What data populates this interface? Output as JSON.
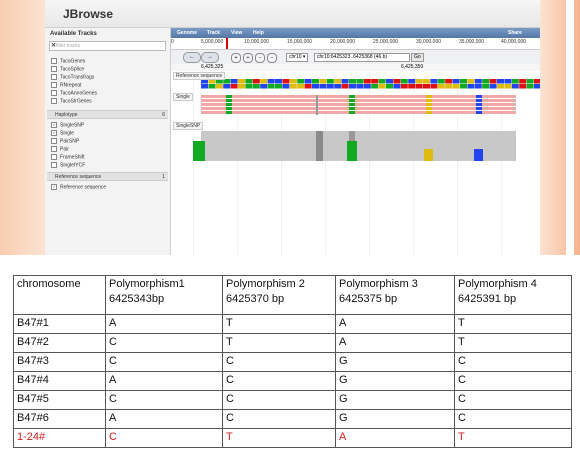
{
  "app": {
    "title": "JBrowse"
  },
  "sidebar": {
    "header": "Available Tracks",
    "filter_placeholder": "filter tracks",
    "tracks": [
      "TacoGenes",
      "TacoSplice",
      "TacoTransfrags",
      "RNrepeat",
      "TacoAnnoGenes",
      "TacoStrGenes"
    ],
    "groups": [
      {
        "label": "Haplotype",
        "count": "6",
        "items": [
          {
            "label": "SingleSNP",
            "checked": true
          },
          {
            "label": "Single",
            "checked": true
          },
          {
            "label": "PairSNP",
            "checked": false
          },
          {
            "label": "Pair",
            "checked": false
          },
          {
            "label": "FrameShift",
            "checked": false
          },
          {
            "label": "SingletYCF",
            "checked": false
          }
        ]
      },
      {
        "label": "Reference sequence",
        "count": "1",
        "items": [
          {
            "label": "Reference sequence",
            "checked": true
          }
        ]
      }
    ]
  },
  "menu": {
    "items": [
      "Genome",
      "Track",
      "View",
      "Help"
    ],
    "share": "Share"
  },
  "ruler": {
    "ticks": [
      "0",
      "5,000,000",
      "10,000,000",
      "15,000,000",
      "20,000,000",
      "25,000,000",
      "30,000,000",
      "35,000,000",
      "40,000,000"
    ]
  },
  "nav": {
    "chrom": "chr10",
    "locus": "chr10:6425323..6425368 (46 b)",
    "go": "Go",
    "local_ticks": [
      "6,425,325",
      "6,425,350"
    ]
  },
  "tracks": {
    "reference": "Reference sequence",
    "single": "Single",
    "singlesnp": "SingleSNP",
    "coverage_ticks": [
      "6",
      "5",
      "4",
      "3",
      "2",
      "1"
    ]
  },
  "colors": {
    "A": "#11aa22",
    "C": "#2244ee",
    "G": "#ddbb11",
    "T": "#dd1111"
  },
  "table": {
    "headers": [
      "chromosome",
      "Polymorphism1\n6425343bp",
      "Polymorphism 2\n6425370  bp",
      "Polymorphism 3\n6425375  bp",
      "Polymorphism 4\n6425391  bp"
    ],
    "rows": [
      [
        "B47#1",
        "A",
        "T",
        "A",
        "T"
      ],
      [
        "B47#2",
        "C",
        "T",
        "A",
        "T"
      ],
      [
        "B47#3",
        "C",
        "C",
        "G",
        "C"
      ],
      [
        "B47#4",
        "A",
        "C",
        "G",
        "C"
      ],
      [
        "B47#5",
        "C",
        "C",
        "G",
        "C"
      ],
      [
        "B47#6",
        "A",
        "C",
        "G",
        "C"
      ],
      [
        "1-24#",
        "C",
        "T",
        "A",
        "T"
      ]
    ],
    "highlight_row_color": "#d42020"
  }
}
